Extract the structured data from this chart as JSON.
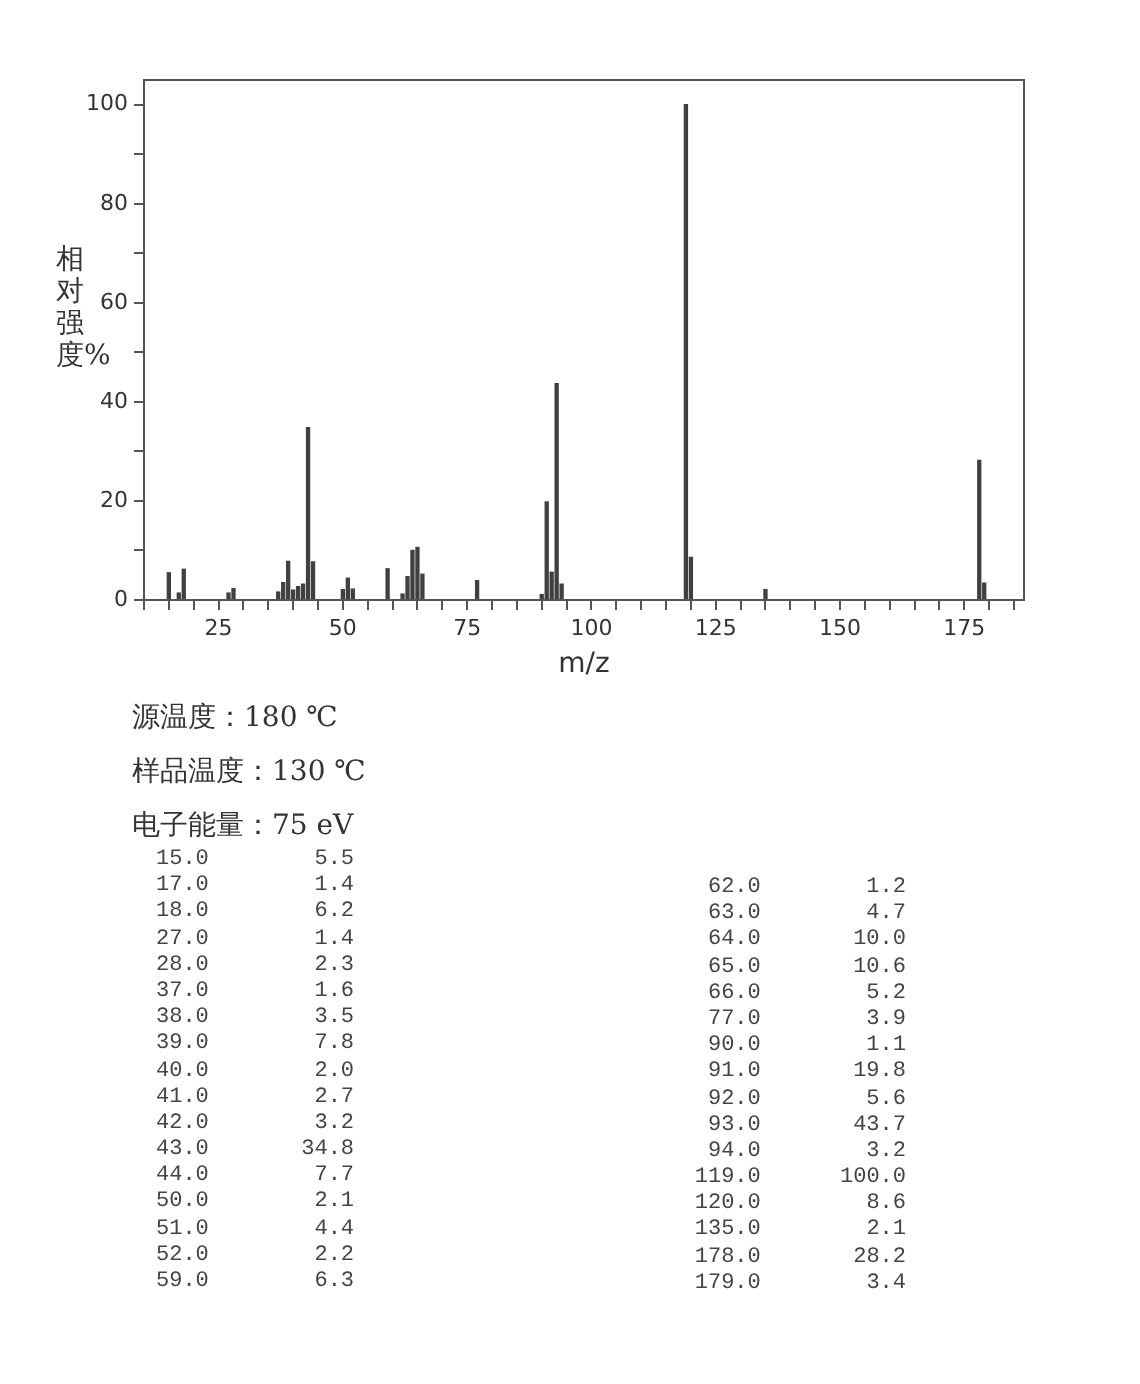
{
  "chart_data": {
    "type": "bar",
    "xlabel": "m/z",
    "ylabel": "相对强度%",
    "x": [
      15,
      17,
      18,
      27,
      28,
      37,
      38,
      39,
      40,
      41,
      42,
      43,
      44,
      50,
      51,
      52,
      59,
      62,
      63,
      64,
      65,
      66,
      77,
      90,
      91,
      92,
      93,
      94,
      119,
      120,
      135,
      178,
      179
    ],
    "values": [
      5.5,
      1.4,
      6.2,
      1.4,
      2.3,
      1.6,
      3.5,
      7.8,
      2.0,
      2.7,
      3.2,
      34.8,
      7.7,
      2.1,
      4.4,
      2.2,
      6.3,
      1.2,
      4.7,
      10.0,
      10.6,
      5.2,
      3.9,
      1.1,
      19.8,
      5.6,
      43.7,
      3.2,
      100.0,
      8.6,
      2.1,
      28.2,
      3.4
    ],
    "color": "#404040",
    "xlim": [
      10,
      187
    ],
    "xticks": [
      {
        "value": 10,
        "label": null
      },
      {
        "value": 15,
        "label": null
      },
      {
        "value": 20,
        "label": null
      },
      25,
      {
        "value": 30,
        "label": null
      },
      {
        "value": 35,
        "label": null
      },
      {
        "value": 40,
        "label": null
      },
      {
        "value": 45,
        "label": null
      },
      50,
      {
        "value": 55,
        "label": null
      },
      {
        "value": 60,
        "label": null
      },
      {
        "value": 65,
        "label": null
      },
      {
        "value": 70,
        "label": null
      },
      75,
      {
        "value": 80,
        "label": null
      },
      {
        "value": 85,
        "label": null
      },
      {
        "value": 90,
        "label": null
      },
      {
        "value": 95,
        "label": null
      },
      100,
      {
        "value": 105,
        "label": null
      },
      {
        "value": 110,
        "label": null
      },
      {
        "value": 115,
        "label": null
      },
      {
        "value": 120,
        "label": null
      },
      125,
      {
        "value": 130,
        "label": null
      },
      {
        "value": 135,
        "label": null
      },
      {
        "value": 140,
        "label": null
      },
      {
        "value": 145,
        "label": null
      },
      150,
      {
        "value": 155,
        "label": null
      },
      {
        "value": 160,
        "label": null
      },
      {
        "value": 165,
        "label": null
      },
      {
        "value": 170,
        "label": null
      },
      175,
      {
        "value": 180,
        "label": null
      },
      {
        "value": 185,
        "label": null
      }
    ],
    "ylim": [
      0,
      105
    ],
    "yticks": [
      0,
      {
        "value": 10,
        "label": null
      },
      20,
      {
        "value": 30,
        "label": null
      },
      40,
      {
        "value": 50,
        "label": null
      },
      60,
      {
        "value": 70,
        "label": null
      },
      80,
      {
        "value": 90,
        "label": null
      },
      100
    ],
    "grid": false,
    "legend": false,
    "annotations": [
      "源温度：180 ℃",
      "样品温度：130 ℃",
      "电子能量：75 eV",
      "15.0        5.5",
      "17.0        1.4",
      "18.0        6.2",
      "27.0        1.4",
      "28.0        2.3",
      "37.0        1.6",
      "38.0        3.5",
      "39.0        7.8",
      "40.0        2.0",
      "41.0        2.7",
      "42.0        3.2",
      "43.0       34.8",
      "44.0        7.7",
      "50.0        2.1",
      "51.0        4.4",
      "52.0        2.2",
      "59.0        6.3",
      "62.0        1.2",
      "63.0        4.7",
      "64.0       10.0",
      "65.0       10.6",
      "66.0        5.2",
      "77.0        3.9",
      "90.0        1.1",
      "91.0       19.8",
      "92.0        5.6",
      "93.0       43.7",
      "94.0        3.2",
      "119.0      100.0",
      "120.0        8.6",
      "135.0        2.1",
      "178.0       28.2",
      "179.0        3.4"
    ]
  }
}
